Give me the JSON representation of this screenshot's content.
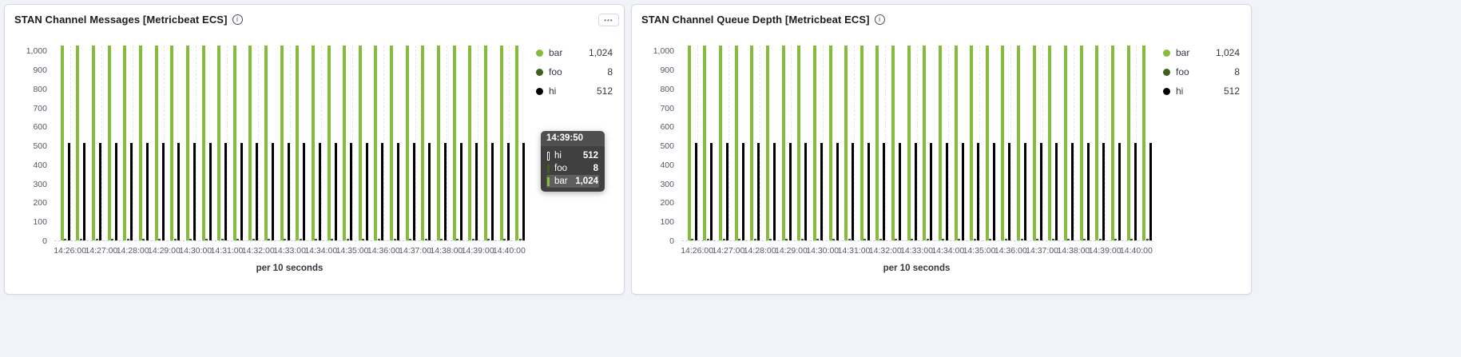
{
  "icons": {
    "info_glyph": "i",
    "panel_options_glyph": "•••"
  },
  "tooltip": {
    "time": "14:39:50",
    "rows": [
      {
        "name": "hi",
        "value": "512",
        "color": "#000000",
        "highlight": false
      },
      {
        "name": "foo",
        "value": "8",
        "color": "#3e611c",
        "highlight": false
      },
      {
        "name": "bar",
        "value": "1,024",
        "color": "#85bc3b",
        "highlight": true
      }
    ]
  },
  "chart_data": [
    {
      "type": "bar",
      "title": "STAN Channel Messages [Metricbeat ECS]",
      "xlabel": "per 10 seconds",
      "ylim": [
        0,
        1030
      ],
      "grid": "vertical-dashed",
      "legend_position": "right",
      "time_range": {
        "start": "14:25:30",
        "end": "14:40:30"
      },
      "bar_interval_seconds": 30,
      "x_tick_labels": [
        "14:26:00",
        "14:27:00",
        "14:28:00",
        "14:29:00",
        "14:30:00",
        "14:31:00",
        "14:32:00",
        "14:33:00",
        "14:34:00",
        "14:35:00",
        "14:36:00",
        "14:37:00",
        "14:38:00",
        "14:39:00",
        "14:40:00"
      ],
      "y_ticks": [
        {
          "value": 0,
          "label": "0"
        },
        {
          "value": 100,
          "label": "100"
        },
        {
          "value": 200,
          "label": "200"
        },
        {
          "value": 300,
          "label": "300"
        },
        {
          "value": 400,
          "label": "400"
        },
        {
          "value": 500,
          "label": "500"
        },
        {
          "value": 600,
          "label": "600"
        },
        {
          "value": 700,
          "label": "700"
        },
        {
          "value": 800,
          "label": "800"
        },
        {
          "value": 900,
          "label": "900"
        },
        {
          "value": 1000,
          "label": "1,000"
        }
      ],
      "series": [
        {
          "name": "bar",
          "color": "#85bc3b",
          "value": 1024,
          "display_value": "1,024",
          "constant": true
        },
        {
          "name": "foo",
          "color": "#3e611c",
          "value": 8,
          "display_value": "8",
          "constant": true
        },
        {
          "name": "hi",
          "color": "#000000",
          "value": 512,
          "display_value": "512",
          "constant": true
        }
      ]
    },
    {
      "type": "bar",
      "title": "STAN Channel Queue Depth [Metricbeat ECS]",
      "xlabel": "per 10 seconds",
      "ylim": [
        0,
        1030
      ],
      "grid": "vertical-dashed",
      "legend_position": "right",
      "time_range": {
        "start": "14:25:30",
        "end": "14:40:30"
      },
      "bar_interval_seconds": 30,
      "x_tick_labels": [
        "14:26:00",
        "14:27:00",
        "14:28:00",
        "14:29:00",
        "14:30:00",
        "14:31:00",
        "14:32:00",
        "14:33:00",
        "14:34:00",
        "14:35:00",
        "14:36:00",
        "14:37:00",
        "14:38:00",
        "14:39:00",
        "14:40:00"
      ],
      "y_ticks": [
        {
          "value": 0,
          "label": "0"
        },
        {
          "value": 100,
          "label": "100"
        },
        {
          "value": 200,
          "label": "200"
        },
        {
          "value": 300,
          "label": "300"
        },
        {
          "value": 400,
          "label": "400"
        },
        {
          "value": 500,
          "label": "500"
        },
        {
          "value": 600,
          "label": "600"
        },
        {
          "value": 700,
          "label": "700"
        },
        {
          "value": 800,
          "label": "800"
        },
        {
          "value": 900,
          "label": "900"
        },
        {
          "value": 1000,
          "label": "1,000"
        }
      ],
      "series": [
        {
          "name": "bar",
          "color": "#85bc3b",
          "value": 1024,
          "display_value": "1,024",
          "constant": true
        },
        {
          "name": "foo",
          "color": "#3e611c",
          "value": 8,
          "display_value": "8",
          "constant": true
        },
        {
          "name": "hi",
          "color": "#000000",
          "value": 512,
          "display_value": "512",
          "constant": true
        }
      ]
    }
  ]
}
